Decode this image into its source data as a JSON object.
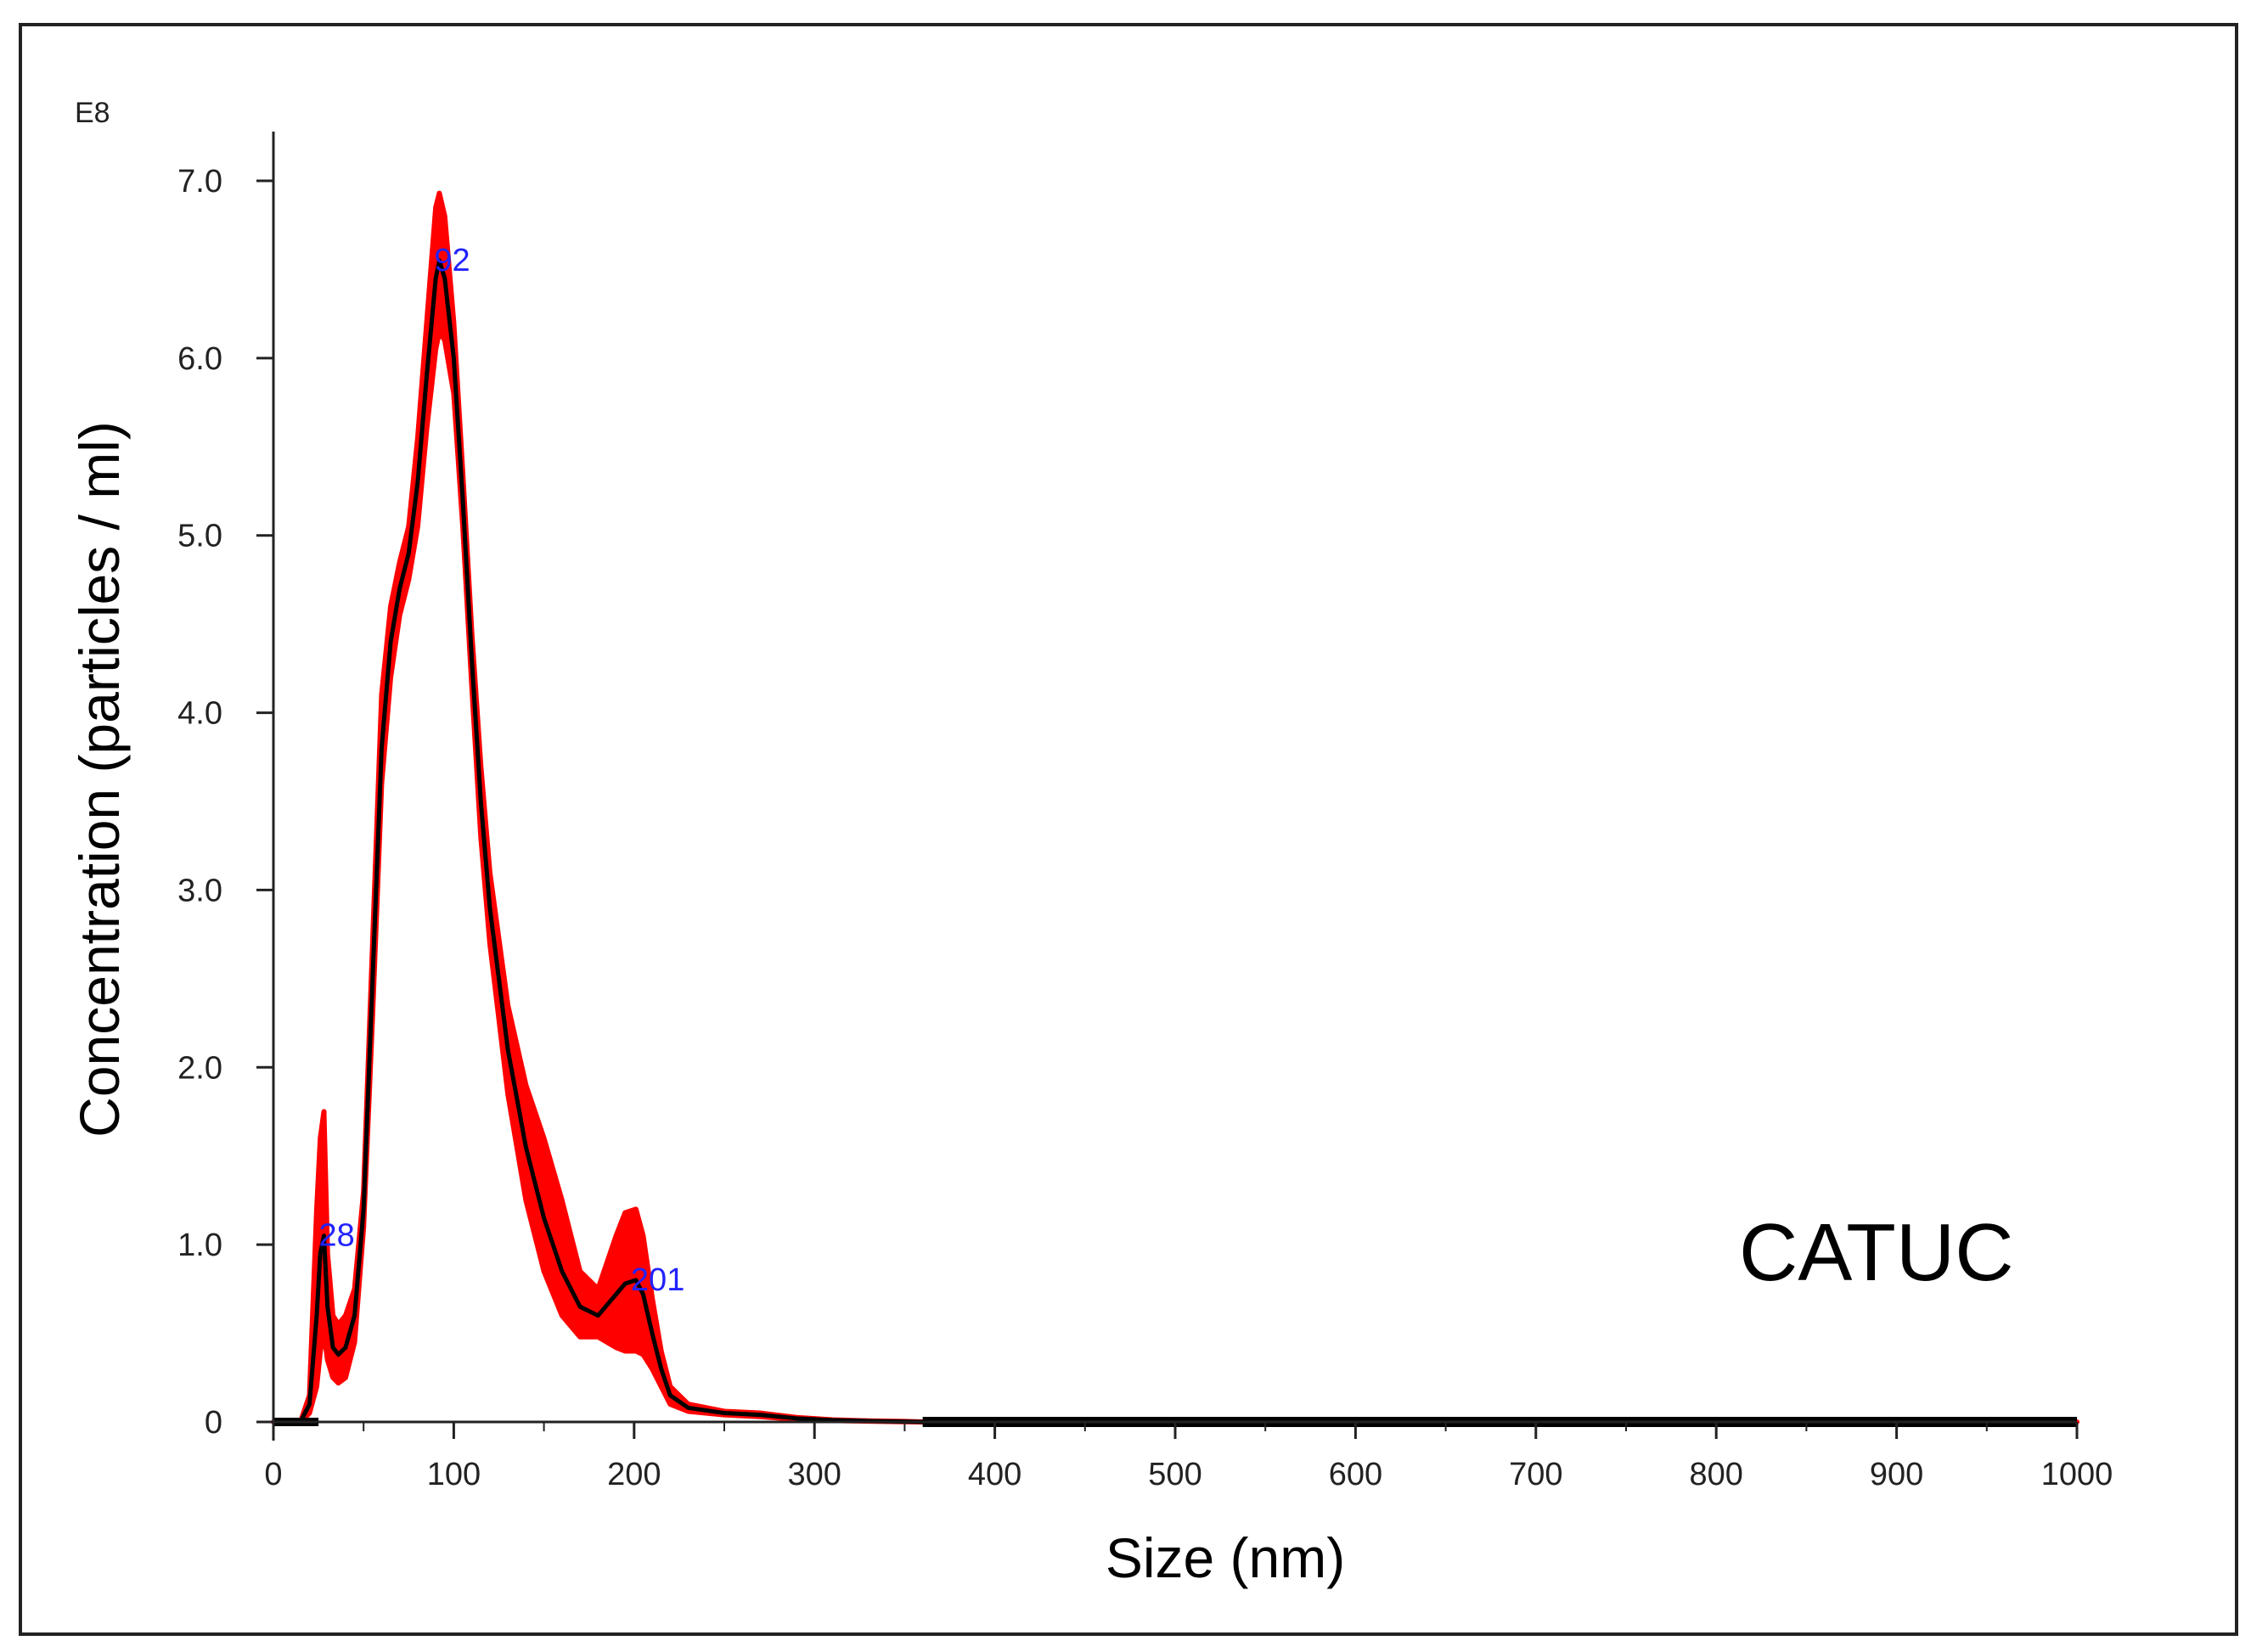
{
  "chart_data": {
    "type": "line",
    "title": "",
    "xlabel": "Size (nm)",
    "ylabel": "Concentration (particles / ml)",
    "y_exponent_label": "E8",
    "xlim": [
      0,
      1000
    ],
    "ylim": [
      0,
      7.0
    ],
    "x_ticks": [
      "0",
      "100",
      "200",
      "300",
      "400",
      "500",
      "600",
      "700",
      "800",
      "900",
      "1000"
    ],
    "y_ticks": [
      "0",
      "1.0",
      "2.0",
      "3.0",
      "4.0",
      "5.0",
      "6.0",
      "7.0"
    ],
    "grid": false,
    "annotation": "CATUC",
    "peak_labels": [
      {
        "x": 28,
        "y": 1.05,
        "text": "28"
      },
      {
        "x": 92,
        "y": 6.55,
        "text": "92"
      },
      {
        "x": 201,
        "y": 0.8,
        "text": "201"
      }
    ],
    "series": [
      {
        "color": "#000000",
        "x": [
          0,
          15,
          20,
          24,
          26,
          28,
          30,
          33,
          36,
          40,
          45,
          50,
          55,
          60,
          65,
          70,
          75,
          80,
          85,
          90,
          92,
          95,
          100,
          105,
          110,
          115,
          120,
          130,
          140,
          150,
          160,
          170,
          180,
          190,
          195,
          201,
          205,
          210,
          215,
          220,
          230,
          250,
          270,
          290,
          310,
          330,
          350,
          360,
          400,
          500,
          600,
          700,
          800,
          900,
          1000
        ],
        "y": [
          0,
          0,
          0.1,
          0.6,
          0.95,
          1.05,
          0.65,
          0.42,
          0.38,
          0.42,
          0.6,
          1.2,
          2.5,
          3.8,
          4.4,
          4.7,
          4.9,
          5.3,
          5.9,
          6.45,
          6.55,
          6.45,
          6.0,
          5.2,
          4.3,
          3.5,
          2.9,
          2.1,
          1.55,
          1.15,
          0.85,
          0.65,
          0.6,
          0.72,
          0.78,
          0.8,
          0.72,
          0.5,
          0.3,
          0.15,
          0.08,
          0.05,
          0.04,
          0.02,
          0.01,
          0.005,
          0.002,
          0,
          0,
          0,
          0,
          0,
          0,
          0,
          0
        ]
      }
    ],
    "error_band": {
      "color": "#ff0000",
      "upper": [
        0,
        0,
        0.15,
        1.2,
        1.6,
        1.75,
        0.95,
        0.6,
        0.55,
        0.6,
        0.75,
        1.3,
        2.7,
        4.1,
        4.6,
        4.85,
        5.05,
        5.55,
        6.2,
        6.85,
        6.93,
        6.8,
        6.2,
        5.35,
        4.45,
        3.7,
        3.1,
        2.35,
        1.9,
        1.6,
        1.25,
        0.85,
        0.75,
        1.05,
        1.18,
        1.2,
        1.05,
        0.7,
        0.4,
        0.2,
        0.1,
        0.06,
        0.05,
        0.025,
        0.012,
        0.006,
        0.003,
        0,
        0,
        0,
        0,
        0,
        0,
        0,
        0
      ],
      "lower": [
        0,
        0,
        0.05,
        0.2,
        0.4,
        0.5,
        0.35,
        0.25,
        0.22,
        0.25,
        0.45,
        1.1,
        2.3,
        3.6,
        4.2,
        4.55,
        4.75,
        5.05,
        5.6,
        6.05,
        6.15,
        6.1,
        5.8,
        5.05,
        4.15,
        3.3,
        2.7,
        1.85,
        1.25,
        0.85,
        0.6,
        0.48,
        0.48,
        0.42,
        0.4,
        0.4,
        0.38,
        0.3,
        0.2,
        0.1,
        0.06,
        0.04,
        0.03,
        0.015,
        0.008,
        0.004,
        0.001,
        0,
        0,
        0,
        0,
        0,
        0,
        0,
        0
      ]
    }
  }
}
